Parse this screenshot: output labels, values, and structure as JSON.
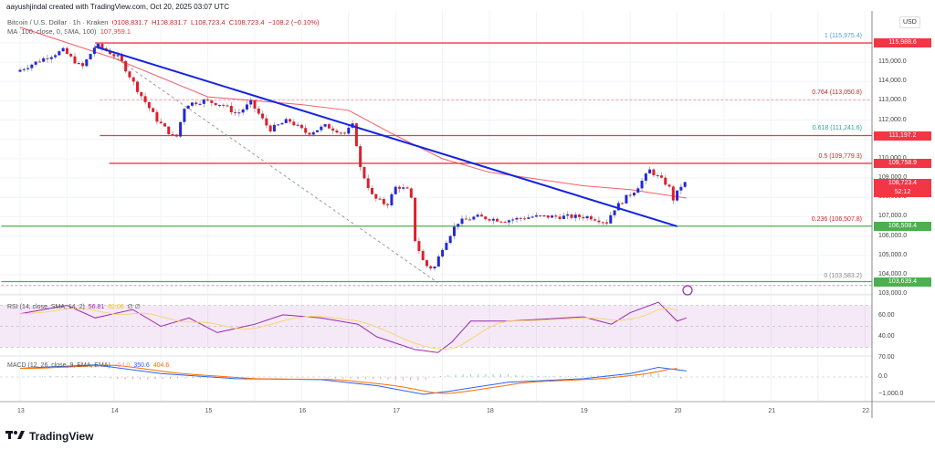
{
  "header": {
    "author": "aayushjindal created with TradingView.com, Oct 20, 2025 03:07 UTC",
    "symbol": "Bitcoin / U.S. Dollar · 1h · Kraken",
    "open": "O108,831.7",
    "high": "H108,831.7",
    "low": "L108,723.4",
    "close": "C108,723.4",
    "change": "−108.2 (−0.10%)",
    "ma_label": "MA (100, close, 0, SMA, 100)",
    "ma_value": "107,959.1"
  },
  "price_axis": {
    "currency": "USD",
    "ticks": [
      "115,000.0",
      "114,000.0",
      "113,000.0",
      "112,000.0",
      "110,000.0",
      "109,000.0",
      "108,000.0",
      "107,000.0",
      "106,000.0",
      "105,000.0",
      "104,000.0",
      "103,000.0"
    ],
    "labels": [
      {
        "text": "115,988.6",
        "color": "#f23645"
      },
      {
        "text": "111,197.2",
        "color": "#f23645"
      },
      {
        "text": "109,758.9",
        "color": "#f23645"
      },
      {
        "text": "108,723.4",
        "sub": "52:12",
        "color": "#f23645"
      },
      {
        "text": "106,508.4",
        "color": "#4caf50"
      },
      {
        "text": "103,639.4",
        "color": "#4caf50"
      }
    ]
  },
  "fib_levels": [
    {
      "text": "1 (115,975.4)",
      "color": "#5b9bd5"
    },
    {
      "text": "0.764 (113,050.8)",
      "color": "#c62828"
    },
    {
      "text": "0.618 (111,241.6)",
      "color": "#26a69a"
    },
    {
      "text": "0.5 (109,779.3)",
      "color": "#c62828"
    },
    {
      "text": "0.236 (106,507.8)",
      "color": "#c62828"
    },
    {
      "text": "0 (103,583.2)",
      "color": "#888888"
    }
  ],
  "rsi": {
    "label": "RSI (14, close, SMA, 14, 2)",
    "value": "56.81",
    "sma": "62.06",
    "extra": "∅ ∅",
    "ticks": [
      "60.00",
      "40.00",
      "70.00"
    ]
  },
  "macd": {
    "label": "MACD (12, 26, close, 9, EMA, EMA)",
    "hist": "−54.0",
    "macd": "350.6",
    "signal": "404.6",
    "ticks": [
      "0.0",
      "−1,000.0"
    ]
  },
  "time_axis": [
    "13",
    "14",
    "15",
    "16",
    "17",
    "18",
    "19",
    "20",
    "21",
    "22"
  ],
  "brand": "TradingView",
  "chart_data": {
    "type": "candlestick",
    "timeframe": "1h",
    "x_unit": "day of Oct 2025",
    "ylim": [
      102700,
      116500
    ],
    "price_path": [
      [
        13.0,
        114500
      ],
      [
        13.3,
        115200
      ],
      [
        13.5,
        115600
      ],
      [
        13.7,
        114700
      ],
      [
        13.85,
        115900
      ],
      [
        14.1,
        115200
      ],
      [
        14.3,
        113500
      ],
      [
        14.5,
        112000
      ],
      [
        14.7,
        111000
      ],
      [
        14.8,
        112800
      ],
      [
        15.0,
        113000
      ],
      [
        15.2,
        112800
      ],
      [
        15.35,
        112300
      ],
      [
        15.5,
        112900
      ],
      [
        15.7,
        111500
      ],
      [
        15.9,
        112000
      ],
      [
        16.1,
        111300
      ],
      [
        16.3,
        111700
      ],
      [
        16.5,
        111300
      ],
      [
        16.6,
        111800
      ],
      [
        16.65,
        109700
      ],
      [
        16.8,
        108000
      ],
      [
        16.95,
        107600
      ],
      [
        17.05,
        108600
      ],
      [
        17.2,
        108300
      ],
      [
        17.25,
        105800
      ],
      [
        17.35,
        104500
      ],
      [
        17.45,
        104300
      ],
      [
        17.55,
        105500
      ],
      [
        17.7,
        106700
      ],
      [
        17.9,
        107000
      ],
      [
        18.2,
        106800
      ],
      [
        18.5,
        107000
      ],
      [
        18.8,
        107000
      ],
      [
        19.1,
        107000
      ],
      [
        19.3,
        106700
      ],
      [
        19.35,
        107300
      ],
      [
        19.5,
        108000
      ],
      [
        19.6,
        108400
      ],
      [
        19.75,
        109400
      ],
      [
        19.85,
        109000
      ],
      [
        19.95,
        108600
      ],
      [
        20.0,
        107900
      ],
      [
        20.1,
        108723.4
      ]
    ],
    "ma100": [
      [
        13.0,
        116800
      ],
      [
        14,
        115200
      ],
      [
        15,
        113200
      ],
      [
        16,
        112800
      ],
      [
        16.5,
        112500
      ],
      [
        17,
        111200
      ],
      [
        17.5,
        110000
      ],
      [
        18,
        109300
      ],
      [
        19,
        108600
      ],
      [
        19.5,
        108400
      ],
      [
        20.1,
        107959.1
      ]
    ],
    "trendline": [
      [
        13.8,
        115800
      ],
      [
        20.0,
        106500
      ]
    ],
    "fib_anchor": [
      [
        13.8,
        115975.4
      ],
      [
        17.45,
        103583.2
      ]
    ],
    "horizontal_levels": [
      {
        "price": 115988.6,
        "color": "#f23645",
        "from": 13.8
      },
      {
        "price": 111197.2,
        "color": "#f23645",
        "from": 13.85
      },
      {
        "price": 109758.9,
        "color": "#f23645",
        "from": 13.95
      },
      {
        "price": 106508.4,
        "color": "#4caf50",
        "from": 12.8
      },
      {
        "price": 103639.4,
        "color": "#4caf50",
        "from": 12.8
      }
    ],
    "rsi_series": [
      [
        13.0,
        62
      ],
      [
        13.5,
        70
      ],
      [
        13.8,
        58
      ],
      [
        14.2,
        66
      ],
      [
        14.5,
        50
      ],
      [
        14.8,
        58
      ],
      [
        15.1,
        44
      ],
      [
        15.5,
        52
      ],
      [
        15.8,
        61
      ],
      [
        16.2,
        58
      ],
      [
        16.6,
        52
      ],
      [
        16.8,
        40
      ],
      [
        17.2,
        28
      ],
      [
        17.45,
        25
      ],
      [
        17.6,
        35
      ],
      [
        17.8,
        55
      ],
      [
        18.2,
        55
      ],
      [
        18.6,
        57
      ],
      [
        19.0,
        59
      ],
      [
        19.3,
        52
      ],
      [
        19.5,
        63
      ],
      [
        19.8,
        73
      ],
      [
        20.0,
        55
      ],
      [
        20.1,
        58
      ]
    ],
    "macd_series": [
      [
        13.0,
        500
      ],
      [
        13.8,
        700
      ],
      [
        14.5,
        200
      ],
      [
        15.3,
        -100
      ],
      [
        16.2,
        -150
      ],
      [
        16.8,
        -500
      ],
      [
        17.3,
        -1000
      ],
      [
        17.6,
        -800
      ],
      [
        18.2,
        -300
      ],
      [
        19.0,
        -100
      ],
      [
        19.5,
        200
      ],
      [
        19.8,
        550
      ],
      [
        20.1,
        350
      ]
    ]
  }
}
